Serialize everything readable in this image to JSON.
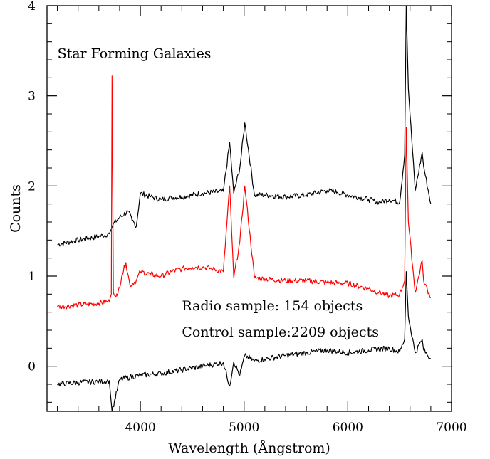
{
  "chart_data": {
    "type": "line",
    "title": "",
    "xlabel": "Wavelength (Ångstrom)",
    "ylabel": "Counts",
    "xlim": [
      3100,
      7000
    ],
    "ylim": [
      -0.5,
      4
    ],
    "x_ticks": [
      {
        "value": 4000,
        "label": "4000"
      },
      {
        "value": 5000,
        "label": "5000"
      },
      {
        "value": 6000,
        "label": "6000"
      },
      {
        "value": 7000,
        "label": "7000"
      }
    ],
    "y_ticks": [
      {
        "value": 0,
        "label": "0"
      },
      {
        "value": 1,
        "label": "1"
      },
      {
        "value": 2,
        "label": "2"
      },
      {
        "value": 3,
        "label": "3"
      },
      {
        "value": 4,
        "label": "4"
      }
    ],
    "grid": false,
    "legend": "none",
    "annotations": [
      {
        "text": "Star Forming Galaxies",
        "x": 3200,
        "y": 3.42
      },
      {
        "text": "Radio sample: 154 objects",
        "x": 4400,
        "y": 0.62
      },
      {
        "text": "Control sample:2209 objects",
        "x": 4400,
        "y": 0.33
      }
    ],
    "series": [
      {
        "color": "#000000",
        "x": [
          3200,
          3400,
          3600,
          3700,
          3720,
          3740,
          3800,
          3880,
          3920,
          3960,
          4000,
          4100,
          4200,
          4300,
          4400,
          4600,
          4800,
          4861,
          4900,
          4959,
          5007,
          5100,
          5200,
          5400,
          5600,
          5800,
          5900,
          6000,
          6200,
          6300,
          6400,
          6500,
          6548,
          6563,
          6584,
          6650,
          6717,
          6731,
          6800
        ],
        "y": [
          1.35,
          1.4,
          1.44,
          1.47,
          1.52,
          1.58,
          1.65,
          1.72,
          1.62,
          1.55,
          1.92,
          1.88,
          1.85,
          1.87,
          1.88,
          1.92,
          1.94,
          2.48,
          1.92,
          2.2,
          2.7,
          1.9,
          1.9,
          1.88,
          1.9,
          1.95,
          1.93,
          1.9,
          1.85,
          1.82,
          1.85,
          1.82,
          2.35,
          4.0,
          3.08,
          1.95,
          2.37,
          2.22,
          1.8
        ]
      },
      {
        "color": "#ff0000",
        "x": [
          3200,
          3400,
          3600,
          3700,
          3720,
          3727,
          3740,
          3780,
          3820,
          3860,
          3900,
          3960,
          4000,
          4100,
          4200,
          4300,
          4400,
          4500,
          4600,
          4700,
          4800,
          4861,
          4900,
          4959,
          5007,
          5100,
          5200,
          5400,
          5600,
          5800,
          6000,
          6200,
          6300,
          6400,
          6500,
          6548,
          6563,
          6584,
          6650,
          6717,
          6731,
          6800
        ],
        "y": [
          0.66,
          0.68,
          0.7,
          0.72,
          0.8,
          3.22,
          0.82,
          0.78,
          1.0,
          1.15,
          0.9,
          0.95,
          1.05,
          1.02,
          1.0,
          1.05,
          1.08,
          1.1,
          1.1,
          1.08,
          1.05,
          2.0,
          0.98,
          1.38,
          2.0,
          0.98,
          0.97,
          0.95,
          0.95,
          0.93,
          0.92,
          0.86,
          0.82,
          0.78,
          0.8,
          0.95,
          2.65,
          1.6,
          0.82,
          1.17,
          0.95,
          0.76
        ]
      },
      {
        "color": "#000000",
        "x": [
          3200,
          3400,
          3600,
          3700,
          3727,
          3800,
          3900,
          4000,
          4200,
          4400,
          4600,
          4800,
          4861,
          4900,
          4959,
          5007,
          5100,
          5200,
          5400,
          5600,
          5800,
          6000,
          6200,
          6400,
          6500,
          6548,
          6563,
          6584,
          6650,
          6717,
          6731,
          6800
        ],
        "y": [
          -0.2,
          -0.18,
          -0.17,
          -0.16,
          -0.5,
          -0.15,
          -0.12,
          -0.1,
          -0.08,
          -0.04,
          0.0,
          0.04,
          -0.22,
          0.05,
          -0.1,
          0.12,
          0.06,
          0.08,
          0.12,
          0.15,
          0.18,
          0.15,
          0.18,
          0.2,
          0.16,
          0.3,
          1.05,
          0.55,
          0.15,
          0.3,
          0.18,
          0.08
        ]
      }
    ]
  }
}
